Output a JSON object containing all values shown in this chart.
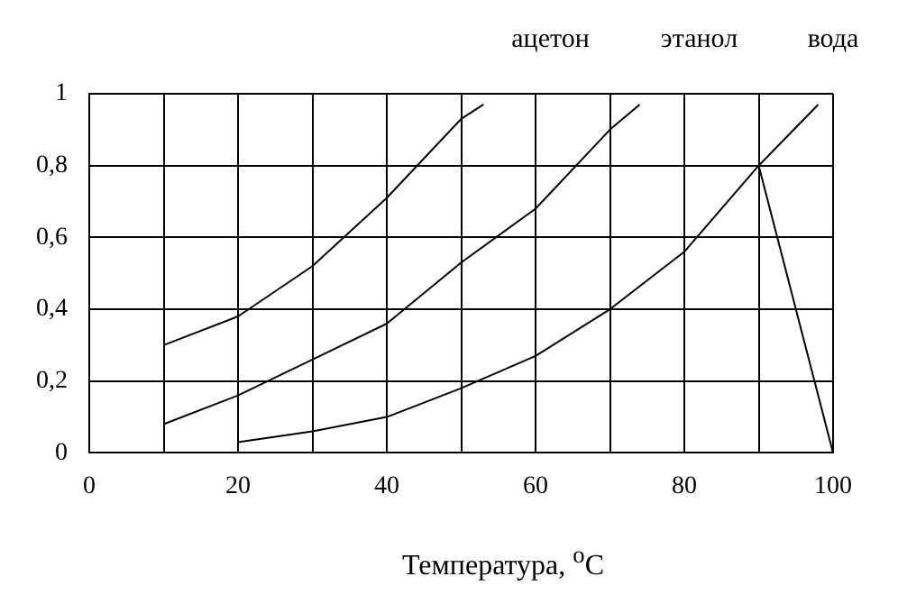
{
  "chart_data": {
    "type": "line",
    "xlabel": "Температура, $^{o}$C",
    "xlim": [
      0,
      100
    ],
    "xticks": [
      0,
      {
        "value": 10,
        "label": null
      },
      20,
      {
        "value": 30,
        "label": null
      },
      40,
      {
        "value": 50,
        "label": null
      },
      60,
      {
        "value": 70,
        "label": null
      },
      80,
      {
        "value": 90,
        "label": null
      },
      100
    ],
    "ylim": [
      0,
      1
    ],
    "yticks": [
      0,
      {
        "value": 0.2,
        "label": "0,2"
      },
      {
        "value": 0.4,
        "label": "0,4"
      },
      {
        "value": 0.6,
        "label": "0,6"
      },
      {
        "value": 0.8,
        "label": "0,8"
      },
      1
    ],
    "grid": true,
    "legend": false,
    "marker": "none",
    "line_style": "solid",
    "series": [
      {
        "name": "ацетон",
        "color": "#000000",
        "x": [
          10,
          20,
          30,
          40,
          50,
          53
        ],
        "values": [
          0.3,
          0.38,
          0.52,
          0.71,
          0.93,
          0.97
        ]
      },
      {
        "name": "этанол",
        "color": "#000000",
        "x": [
          10,
          20,
          30,
          40,
          50,
          60,
          70,
          74
        ],
        "values": [
          0.08,
          0.16,
          0.26,
          0.36,
          0.53,
          0.68,
          0.9,
          0.97
        ]
      },
      {
        "name": "вода",
        "color": "#000000",
        "x": [
          20,
          30,
          40,
          50,
          60,
          70,
          80,
          90,
          98
        ],
        "values": [
          0.03,
          0.06,
          0.1,
          0.18,
          0.27,
          0.4,
          0.56,
          0.8,
          0.97
        ]
      },
      {
        "color": "#000000",
        "x": [
          90,
          100
        ],
        "values": [
          0.8,
          0
        ]
      }
    ]
  }
}
